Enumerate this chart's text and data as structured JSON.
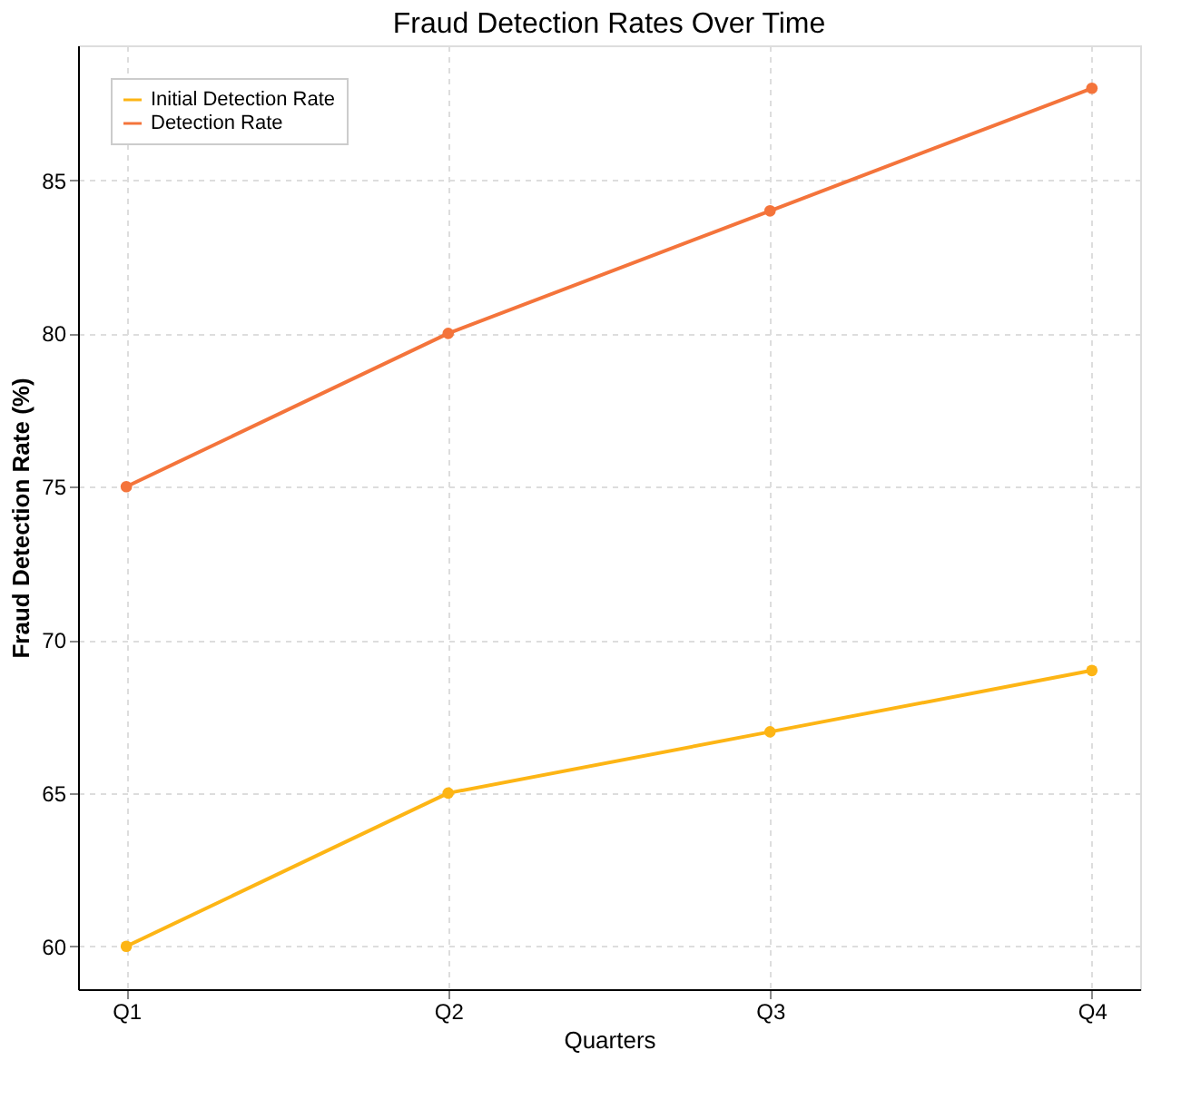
{
  "chart_data": {
    "type": "line",
    "title": "Fraud Detection Rates Over Time",
    "xlabel": "Quarters",
    "ylabel": "Fraud Detection Rate (%)",
    "categories": [
      "Q1",
      "Q2",
      "Q3",
      "Q4"
    ],
    "series": [
      {
        "name": "Initial Detection Rate",
        "color": "#fdb515",
        "values": [
          60,
          65,
          67,
          69
        ]
      },
      {
        "name": "Detection Rate",
        "color": "#f4743b",
        "values": [
          75,
          80,
          84,
          88
        ]
      }
    ],
    "ylim": [
      58.6,
      89.4
    ],
    "yticks": [
      60,
      65,
      70,
      75,
      80,
      85
    ],
    "grid": true,
    "legend": "top left",
    "marker": "circle",
    "line_style": "solid"
  }
}
